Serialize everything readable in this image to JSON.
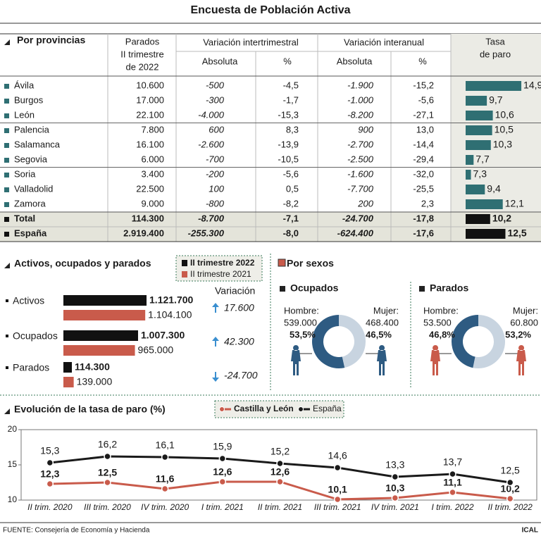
{
  "title": "Encuesta de Población Activa",
  "table": {
    "section": "Por provincias",
    "parados_header": [
      "Parados",
      "II trimestre",
      "de 2022"
    ],
    "inter_header": "Variación intertrimestral",
    "anual_header": "Variación interanual",
    "sub_headers": [
      "Absoluta",
      "%",
      "Absoluta",
      "%"
    ],
    "tasa_header": [
      "Tasa",
      "de paro"
    ],
    "rows": [
      {
        "name": "Ávila",
        "cells": [
          "10.600",
          "-500",
          "-4,5",
          "-1.900",
          "-15,2"
        ]
      },
      {
        "name": "Burgos",
        "cells": [
          "17.000",
          "-300",
          "-1,7",
          "-1.000",
          "-5,6"
        ]
      },
      {
        "name": "León",
        "cells": [
          "22.100",
          "-4.000",
          "-15,3",
          "-8.200",
          "-27,1"
        ]
      },
      {
        "name": "Palencia",
        "cells": [
          "7.800",
          "600",
          "8,3",
          "900",
          "13,0"
        ]
      },
      {
        "name": "Salamanca",
        "cells": [
          "16.100",
          "-2.600",
          "-13,9",
          "-2.700",
          "-14,4"
        ]
      },
      {
        "name": "Segovia",
        "cells": [
          "6.000",
          "-700",
          "-10,5",
          "-2.500",
          "-29,4"
        ]
      },
      {
        "name": "Soria",
        "cells": [
          "3.400",
          "-200",
          "-5,6",
          "-1.600",
          "-32,0"
        ]
      },
      {
        "name": "Valladolid",
        "cells": [
          "22.500",
          "100",
          "0,5",
          "-7.700",
          "-25,5"
        ]
      },
      {
        "name": "Zamora",
        "cells": [
          "9.000",
          "-800",
          "-8,2",
          "200",
          "2,3"
        ]
      },
      {
        "name": "Total",
        "cells": [
          "114.300",
          "-8.700",
          "-7,1",
          "-24.700",
          "-17,8"
        ],
        "bold": true
      },
      {
        "name": "España",
        "cells": [
          "2.919.400",
          "-255.300",
          "-8,0",
          "-624.400",
          "-17,6"
        ],
        "bold": true
      }
    ],
    "tasa": {
      "values": [
        14.9,
        9.7,
        10.6,
        10.5,
        10.3,
        7.7,
        7.3,
        9.4,
        12.1,
        10.2,
        12.5
      ],
      "value_labels": [
        "14,9",
        "9,7",
        "10,6",
        "10,5",
        "10,3",
        "7,7",
        "7,3",
        "9,4",
        "12,1",
        "10,2",
        "12,5"
      ],
      "colors": [
        "#2f6f73",
        "#2f6f73",
        "#2f6f73",
        "#2f6f73",
        "#2f6f73",
        "#2f6f73",
        "#2f6f73",
        "#2f6f73",
        "#2f6f73",
        "#111111",
        "#111111"
      ],
      "xlim": [
        6.5,
        15
      ]
    }
  },
  "chart_data": [
    {
      "type": "barh",
      "title": "Activos, ocupados y parados",
      "categories": [
        "Activos",
        "Ocupados",
        "Parados"
      ],
      "series": [
        {
          "name": "II trimestre 2022",
          "color": "#111111",
          "values": [
            1121700,
            1007300,
            114300
          ],
          "value_labels": [
            "1.121.700",
            "1.007.300",
            "114.300"
          ]
        },
        {
          "name": "II trimestre 2021",
          "color": "#c95b4b",
          "values": [
            1104100,
            965000,
            139000
          ],
          "value_labels": [
            "1.104.100",
            "965.000",
            "139.000"
          ]
        }
      ],
      "xlim": [
        0,
        1150000
      ],
      "variation": {
        "title": "Variación",
        "values": [
          17600,
          42300,
          -24700
        ],
        "value_labels": [
          "17.600",
          "42.300",
          "-24.700"
        ],
        "color": "#3a8fd0"
      }
    },
    {
      "type": "pie",
      "title": "Ocupados",
      "categories": [
        "Hombre:",
        "Mujer:"
      ],
      "counts": [
        "539.000",
        "468.400"
      ],
      "values": [
        53.5,
        46.5
      ],
      "value_labels": [
        "53,5%",
        "46,5%"
      ],
      "colors": [
        "#2e5b82",
        "#c8d4e0"
      ],
      "figure_color": "#2e5b82"
    },
    {
      "type": "pie",
      "title": "Parados",
      "categories": [
        "Hombre:",
        "Mujer:"
      ],
      "counts": [
        "53.500",
        "60.800"
      ],
      "values": [
        46.8,
        53.2
      ],
      "value_labels": [
        "46,8%",
        "53,2%"
      ],
      "colors": [
        "#2e5b82",
        "#c8d4e0"
      ],
      "figure_color": "#c95b4b"
    },
    {
      "type": "line",
      "title": "Evolución de la tasa de paro (%)",
      "categories": [
        "II trim. 2020",
        "III trim. 2020",
        "IV trim. 2020",
        "I trim. 2021",
        "II trim. 2021",
        "III trim. 2021",
        "IV trim. 2021",
        "I trim. 2022",
        "II trim. 2022"
      ],
      "series": [
        {
          "name": "Castilla y León",
          "color": "#c95b4b",
          "values": [
            12.3,
            12.5,
            11.6,
            12.6,
            12.6,
            10.1,
            10.3,
            11.1,
            10.2
          ],
          "value_labels": [
            "12,3",
            "12,5",
            "11,6",
            "12,6",
            "12,6",
            "10,1",
            "10,3",
            "11,1",
            "10,2"
          ]
        },
        {
          "name": "España",
          "color": "#1a1a1a",
          "values": [
            15.3,
            16.2,
            16.1,
            15.9,
            15.2,
            14.6,
            13.3,
            13.7,
            12.5
          ],
          "value_labels": [
            "15,3",
            "16,2",
            "16,1",
            "15,9",
            "15,2",
            "14,6",
            "13,3",
            "13,7",
            "12,5"
          ]
        }
      ],
      "ylim": [
        10,
        20
      ],
      "yticks": [
        10,
        15,
        20
      ]
    }
  ],
  "sexos_title": "Por sexos",
  "source": "FUENTE: Consejería de Economía y Hacienda",
  "brand": "ICAL"
}
